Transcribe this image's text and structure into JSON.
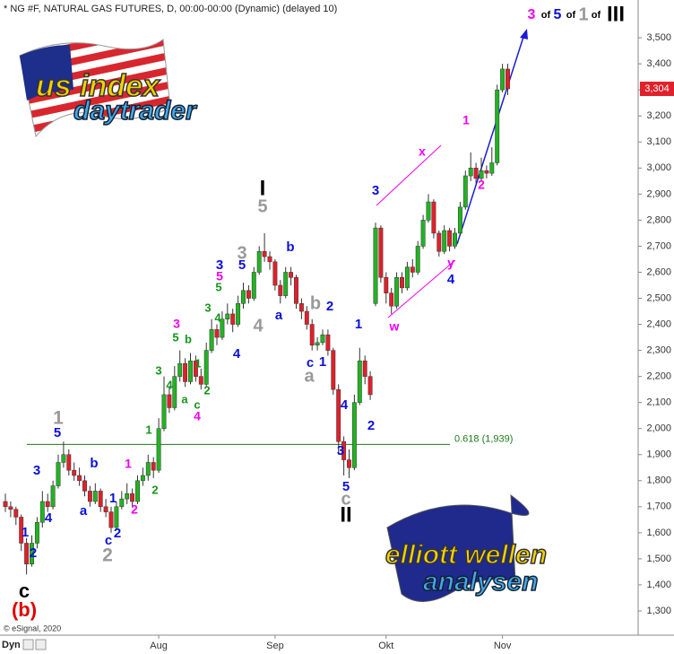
{
  "chart_data": {
    "type": "candlestick",
    "title": "* NG #F, NATURAL GAS FUTURES, D, 00:00-00:00 (Dynamic) (delayed 10)",
    "source": "© eSignal, 2020",
    "mode_label": "Dyn",
    "up_color": "#22b322",
    "down_color": "#e0202a",
    "categories": [
      null,
      null,
      null,
      null,
      null,
      null,
      null,
      null,
      null,
      null,
      null,
      null,
      null,
      null,
      null,
      null,
      null,
      null,
      null,
      null,
      null,
      null,
      null,
      null,
      null,
      null,
      null,
      null,
      null,
      "Aug",
      null,
      null,
      null,
      null,
      null,
      null,
      null,
      null,
      null,
      null,
      null,
      null,
      null,
      null,
      null,
      null,
      null,
      null,
      null,
      null,
      null,
      "Sep",
      null,
      null,
      null,
      null,
      null,
      null,
      null,
      null,
      null,
      null,
      null,
      null,
      null,
      null,
      null,
      null,
      null,
      null,
      null,
      null,
      "Okt",
      null,
      null,
      null,
      null,
      null,
      null,
      null,
      null,
      null,
      null,
      null,
      null,
      null,
      null,
      null,
      null,
      null,
      null,
      null,
      null,
      null,
      "Nov",
      null
    ],
    "candles": [
      [
        1720,
        1750,
        1680,
        1700
      ],
      [
        1700,
        1720,
        1660,
        1690
      ],
      [
        1690,
        1700,
        1630,
        1660
      ],
      [
        1660,
        1670,
        1530,
        1560
      ],
      [
        1560,
        1580,
        1440,
        1480
      ],
      [
        1480,
        1590,
        1470,
        1560
      ],
      [
        1560,
        1660,
        1540,
        1640
      ],
      [
        1640,
        1760,
        1620,
        1720
      ],
      [
        1720,
        1750,
        1680,
        1700
      ],
      [
        1700,
        1800,
        1690,
        1780
      ],
      [
        1780,
        1900,
        1770,
        1870
      ],
      [
        1870,
        1950,
        1850,
        1900
      ],
      [
        1900,
        1920,
        1820,
        1840
      ],
      [
        1840,
        1870,
        1800,
        1820
      ],
      [
        1820,
        1850,
        1780,
        1800
      ],
      [
        1800,
        1820,
        1740,
        1760
      ],
      [
        1760,
        1780,
        1700,
        1720
      ],
      [
        1720,
        1790,
        1710,
        1760
      ],
      [
        1760,
        1770,
        1680,
        1700
      ],
      [
        1700,
        1730,
        1660,
        1680
      ],
      [
        1680,
        1700,
        1600,
        1620
      ],
      [
        1620,
        1720,
        1610,
        1700
      ],
      [
        1700,
        1760,
        1690,
        1730
      ],
      [
        1730,
        1790,
        1710,
        1750
      ],
      [
        1750,
        1770,
        1700,
        1720
      ],
      [
        1720,
        1820,
        1710,
        1800
      ],
      [
        1800,
        1850,
        1780,
        1820
      ],
      [
        1820,
        1900,
        1800,
        1870
      ],
      [
        1870,
        1890,
        1810,
        1840
      ],
      [
        1840,
        2040,
        1830,
        2000
      ],
      [
        2000,
        2200,
        1990,
        2130
      ],
      [
        2130,
        2160,
        2060,
        2080
      ],
      [
        2080,
        2240,
        2070,
        2200
      ],
      [
        2200,
        2300,
        2180,
        2250
      ],
      [
        2250,
        2270,
        2160,
        2180
      ],
      [
        2180,
        2290,
        2170,
        2260
      ],
      [
        2260,
        2280,
        2180,
        2200
      ],
      [
        2200,
        2230,
        2150,
        2170
      ],
      [
        2170,
        2330,
        2160,
        2300
      ],
      [
        2300,
        2420,
        2290,
        2380
      ],
      [
        2380,
        2400,
        2320,
        2350
      ],
      [
        2350,
        2450,
        2340,
        2420
      ],
      [
        2420,
        2480,
        2400,
        2440
      ],
      [
        2440,
        2460,
        2370,
        2400
      ],
      [
        2400,
        2510,
        2390,
        2480
      ],
      [
        2480,
        2560,
        2460,
        2530
      ],
      [
        2530,
        2550,
        2480,
        2500
      ],
      [
        2500,
        2620,
        2490,
        2600
      ],
      [
        2600,
        2700,
        2590,
        2680
      ],
      [
        2680,
        2750,
        2640,
        2660
      ],
      [
        2660,
        2680,
        2610,
        2640
      ],
      [
        2640,
        2650,
        2530,
        2550
      ],
      [
        2550,
        2570,
        2480,
        2510
      ],
      [
        2510,
        2620,
        2500,
        2600
      ],
      [
        2600,
        2620,
        2550,
        2580
      ],
      [
        2580,
        2590,
        2460,
        2480
      ],
      [
        2480,
        2500,
        2420,
        2450
      ],
      [
        2450,
        2470,
        2380,
        2400
      ],
      [
        2400,
        2420,
        2300,
        2320
      ],
      [
        2320,
        2350,
        2300,
        2330
      ],
      [
        2330,
        2380,
        2320,
        2360
      ],
      [
        2360,
        2380,
        2280,
        2300
      ],
      [
        2300,
        2310,
        2130,
        2150
      ],
      [
        2150,
        2170,
        1900,
        1950
      ],
      [
        1950,
        1970,
        1820,
        1880
      ],
      [
        1880,
        1920,
        1810,
        1850
      ],
      [
        1850,
        2130,
        1840,
        2100
      ],
      [
        2100,
        2310,
        2090,
        2260
      ],
      [
        2260,
        2280,
        2170,
        2200
      ],
      [
        2200,
        2220,
        2110,
        2130
      ],
      [
        2480,
        2790,
        2470,
        2770
      ],
      [
        2770,
        2780,
        2560,
        2580
      ],
      [
        2580,
        2600,
        2480,
        2520
      ],
      [
        2520,
        2540,
        2440,
        2470
      ],
      [
        2470,
        2600,
        2460,
        2580
      ],
      [
        2580,
        2600,
        2520,
        2540
      ],
      [
        2540,
        2640,
        2530,
        2620
      ],
      [
        2620,
        2650,
        2580,
        2600
      ],
      [
        2600,
        2720,
        2590,
        2700
      ],
      [
        2700,
        2820,
        2690,
        2800
      ],
      [
        2800,
        2900,
        2790,
        2870
      ],
      [
        2870,
        2880,
        2730,
        2750
      ],
      [
        2750,
        2760,
        2660,
        2680
      ],
      [
        2680,
        2780,
        2670,
        2760
      ],
      [
        2760,
        2770,
        2680,
        2700
      ],
      [
        2700,
        2770,
        2690,
        2750
      ],
      [
        2750,
        2870,
        2740,
        2850
      ],
      [
        2850,
        2990,
        2840,
        2970
      ],
      [
        2970,
        3060,
        2950,
        3000
      ],
      [
        3000,
        3020,
        2940,
        2960
      ],
      [
        2960,
        3040,
        2950,
        2990
      ],
      [
        2990,
        3010,
        2960,
        2980
      ],
      [
        2980,
        3080,
        2970,
        3020
      ],
      [
        3020,
        3320,
        3010,
        3300
      ],
      [
        3300,
        3400,
        3290,
        3380
      ],
      [
        3380,
        3400,
        3280,
        3304
      ]
    ],
    "ylim": [
      1207,
      3645
    ],
    "yticks": [
      {
        "value": 1300,
        "label": "1,300"
      },
      {
        "value": 1400,
        "label": "1,400"
      },
      {
        "value": 1500,
        "label": "1,500"
      },
      {
        "value": 1600,
        "label": "1,600"
      },
      {
        "value": 1700,
        "label": "1,700"
      },
      {
        "value": 1800,
        "label": "1,800"
      },
      {
        "value": 1900,
        "label": "1,900"
      },
      {
        "value": 2000,
        "label": "2,000"
      },
      {
        "value": 2100,
        "label": "2,100"
      },
      {
        "value": 2200,
        "label": "2,200"
      },
      {
        "value": 2300,
        "label": "2,300"
      },
      {
        "value": 2400,
        "label": "2,400"
      },
      {
        "value": 2500,
        "label": "2,500"
      },
      {
        "value": 2600,
        "label": "2,600"
      },
      {
        "value": 2700,
        "label": "2,700"
      },
      {
        "value": 2800,
        "label": "2,800"
      },
      {
        "value": 2900,
        "label": "2,900"
      },
      {
        "value": 3000,
        "label": "3,000"
      },
      {
        "value": 3100,
        "label": "3,100"
      },
      {
        "value": 3200,
        "label": "3,200"
      },
      {
        "value": 3300,
        "label": "3,300"
      },
      {
        "value": 3400,
        "label": "3,400"
      },
      {
        "value": 3500,
        "label": "3,500"
      }
    ],
    "price_tag": {
      "value": 3304,
      "label": "3,304",
      "color": "#e0202a"
    },
    "fib_line": {
      "value": 1939,
      "label": "0.618 (1,939)",
      "color": "#1d7a1d"
    },
    "annotations": [
      {
        "text": "c",
        "color": "#000000"
      },
      {
        "text": "(b)",
        "color": "#e00000"
      },
      {
        "text": "1",
        "color": "#0a10d8"
      },
      {
        "text": "2",
        "color": "#0a10d8"
      },
      {
        "text": "3",
        "color": "#0a10d8"
      },
      {
        "text": "4",
        "color": "#0a10d8"
      },
      {
        "text": "5",
        "color": "#0a10d8"
      },
      {
        "text": "1",
        "color": "#9a9a9a"
      },
      {
        "text": "b",
        "color": "#0a10d8"
      },
      {
        "text": "a",
        "color": "#0a10d8"
      },
      {
        "text": "1",
        "color": "#0a10d8"
      },
      {
        "text": "c",
        "color": "#0a10d8"
      },
      {
        "text": "2",
        "color": "#0a10d8"
      },
      {
        "text": "2",
        "color": "#9a9a9a"
      },
      {
        "text": "1",
        "color": "#f000f0"
      },
      {
        "text": "2",
        "color": "#f000f0"
      },
      {
        "text": "1",
        "color": "#16951a"
      },
      {
        "text": "2",
        "color": "#16951a"
      },
      {
        "text": "3",
        "color": "#16951a"
      },
      {
        "text": "4",
        "color": "#16951a"
      },
      {
        "text": "a",
        "color": "#16951a"
      },
      {
        "text": "c",
        "color": "#16951a"
      },
      {
        "text": "4",
        "color": "#f000f0"
      },
      {
        "text": "2",
        "color": "#16951a"
      },
      {
        "text": "1",
        "color": "#16951a"
      },
      {
        "text": "3",
        "color": "#16951a"
      },
      {
        "text": "3",
        "color": "#f000f0"
      },
      {
        "text": "5",
        "color": "#16951a"
      },
      {
        "text": "b",
        "color": "#16951a"
      },
      {
        "text": "4",
        "color": "#16951a"
      },
      {
        "text": "5",
        "color": "#16951a"
      },
      {
        "text": "5",
        "color": "#f000f0"
      },
      {
        "text": "3",
        "color": "#0a10d8"
      },
      {
        "text": "4",
        "color": "#0a10d8"
      },
      {
        "text": "5",
        "color": "#0a10d8"
      },
      {
        "text": "3",
        "color": "#9a9a9a"
      },
      {
        "text": "4",
        "color": "#9a9a9a"
      },
      {
        "text": "I",
        "color": "#000000"
      },
      {
        "text": "5",
        "color": "#9a9a9a"
      },
      {
        "text": "b",
        "color": "#0a10d8"
      },
      {
        "text": "a",
        "color": "#0a10d8"
      },
      {
        "text": "b",
        "color": "#9a9a9a"
      },
      {
        "text": "2",
        "color": "#0a10d8"
      },
      {
        "text": "c",
        "color": "#0a10d8"
      },
      {
        "text": "1",
        "color": "#0a10d8"
      },
      {
        "text": "a",
        "color": "#9a9a9a"
      },
      {
        "text": "4",
        "color": "#0a10d8"
      },
      {
        "text": "3",
        "color": "#0a10d8"
      },
      {
        "text": "5",
        "color": "#0a10d8"
      },
      {
        "text": "c",
        "color": "#9a9a9a"
      },
      {
        "text": "II",
        "color": "#000000"
      },
      {
        "text": "1",
        "color": "#0a10d8"
      },
      {
        "text": "2",
        "color": "#0a10d8"
      },
      {
        "text": "3",
        "color": "#0a10d8"
      },
      {
        "text": "x",
        "color": "#f000f0"
      },
      {
        "text": "w",
        "color": "#f000f0"
      },
      {
        "text": "y",
        "color": "#f000f0"
      },
      {
        "text": "4",
        "color": "#0a10d8"
      },
      {
        "text": "1",
        "color": "#f000f0"
      },
      {
        "text": "2",
        "color": "#f000f0"
      },
      {
        "text": "3",
        "color": "#f000f0"
      },
      {
        "text": "of",
        "color": "#000000"
      },
      {
        "text": "5",
        "color": "#0a10d8"
      },
      {
        "text": "of",
        "color": "#000000"
      },
      {
        "text": "1",
        "color": "#9a9a9a"
      },
      {
        "text": "of",
        "color": "#000000"
      },
      {
        "text": "III",
        "color": "#000000"
      }
    ],
    "logo_top": [
      "us index",
      "daytrader"
    ],
    "logo_bottom": [
      "elliott wellen",
      "analysen"
    ]
  }
}
